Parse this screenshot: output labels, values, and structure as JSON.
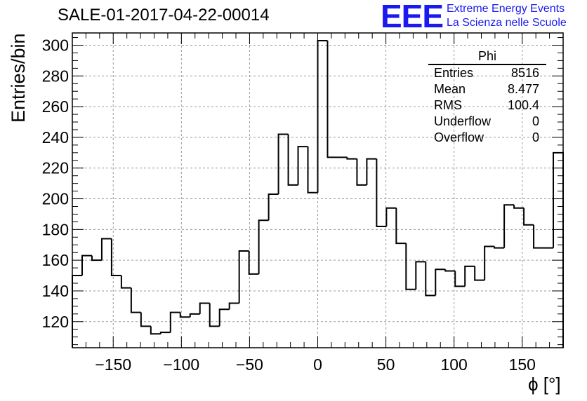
{
  "header": {
    "title": "SALE-01-2017-04-22-00014",
    "logo_text": "EEE",
    "brand_line1": "Extreme Energy Events",
    "brand_line2": "La Scienza nelle Scuole"
  },
  "stats_box": {
    "name": "Phi",
    "rows": [
      {
        "label": "Entries",
        "value": "8516"
      },
      {
        "label": "Mean",
        "value": "8.477"
      },
      {
        "label": "RMS",
        "value": "100.4"
      },
      {
        "label": "Underflow",
        "value": "0"
      },
      {
        "label": "Overflow",
        "value": "0"
      }
    ]
  },
  "colors": {
    "line": "#000000",
    "grid": "#9a9a9a",
    "brand": "#1a1af0"
  },
  "chart_data": {
    "type": "histogram",
    "xlabel": "ϕ [°]",
    "ylabel": "Entries/bin",
    "xlim": [
      -180,
      180
    ],
    "ylim": [
      103,
      308
    ],
    "grid": true,
    "bin_width": 7.2,
    "x_ticks": [
      -150,
      -100,
      -50,
      0,
      50,
      100,
      150
    ],
    "y_ticks": [
      120,
      140,
      160,
      180,
      200,
      220,
      240,
      260,
      280,
      300
    ],
    "bin_edges_start": -180,
    "values": [
      150,
      163,
      160,
      174,
      150,
      142,
      126,
      117,
      112,
      113,
      126,
      123,
      125,
      132,
      117,
      128,
      132,
      166,
      151,
      186,
      203,
      242,
      209,
      234,
      204,
      303,
      227,
      227,
      226,
      209,
      226,
      182,
      194,
      171,
      141,
      159,
      137,
      154,
      153,
      143,
      156,
      147,
      169,
      168,
      196,
      194,
      183,
      168,
      168,
      230
    ]
  }
}
